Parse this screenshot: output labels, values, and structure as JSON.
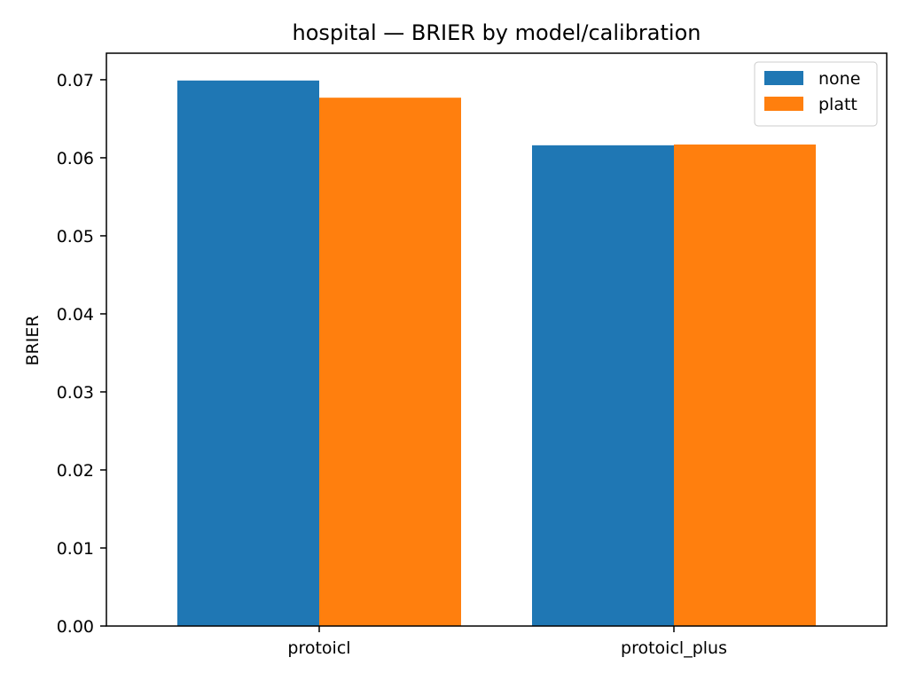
{
  "chart_data": {
    "type": "bar",
    "title": "hospital — BRIER by model/calibration",
    "xlabel": "",
    "ylabel": "BRIER",
    "categories": [
      "protoicl",
      "protoicl_plus"
    ],
    "series": [
      {
        "name": "none",
        "values": [
          0.0699,
          0.0616
        ],
        "color": "#1f77b4"
      },
      {
        "name": "platt",
        "values": [
          0.0677,
          0.0617
        ],
        "color": "#ff7f0e"
      }
    ],
    "ylim": [
      0,
      0.0734
    ],
    "yticks": [
      0.0,
      0.01,
      0.02,
      0.03,
      0.04,
      0.05,
      0.06,
      0.07
    ],
    "ytick_labels": [
      "0.00",
      "0.01",
      "0.02",
      "0.03",
      "0.04",
      "0.05",
      "0.06",
      "0.07"
    ],
    "legend_position": "top-right",
    "grid": false
  }
}
